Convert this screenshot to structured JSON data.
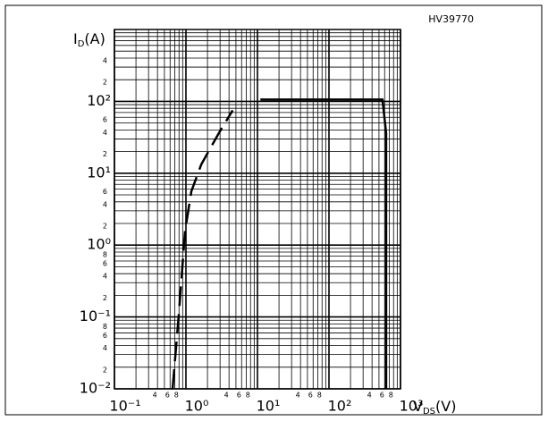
{
  "chart_data": {
    "type": "line",
    "code": "HV39770",
    "ylabel": {
      "symbol": "I",
      "sub": "D",
      "unit": "(A)"
    },
    "xlabel": {
      "symbol": "V",
      "sub": "DS",
      "unit": "(V)"
    },
    "xscale": "log",
    "yscale": "log",
    "grid": true,
    "xlim": [
      0.1,
      1000
    ],
    "ylim": [
      0.01,
      1000
    ],
    "xticks": [
      {
        "value": 0.1,
        "label": "10⁻¹"
      },
      {
        "value": 1,
        "label": "10⁰"
      },
      {
        "value": 10,
        "label": "10¹"
      },
      {
        "value": 100,
        "label": "10²"
      },
      {
        "value": 1000,
        "label": "10³"
      }
    ],
    "xminor_labels": [
      {
        "value": 0.4,
        "label": "4"
      },
      {
        "value": 0.6,
        "label": "6"
      },
      {
        "value": 0.8,
        "label": "8"
      },
      {
        "value": 4,
        "label": "4"
      },
      {
        "value": 6,
        "label": "6"
      },
      {
        "value": 8,
        "label": "8"
      },
      {
        "value": 40,
        "label": "4"
      },
      {
        "value": 60,
        "label": "6"
      },
      {
        "value": 80,
        "label": "8"
      },
      {
        "value": 400,
        "label": "4"
      },
      {
        "value": 600,
        "label": "6"
      },
      {
        "value": 800,
        "label": "8"
      }
    ],
    "yticks": [
      {
        "value": 0.01,
        "label": "10⁻²"
      },
      {
        "value": 0.1,
        "label": "10⁻¹"
      },
      {
        "value": 1,
        "label": "10⁰"
      },
      {
        "value": 10,
        "label": "10¹"
      },
      {
        "value": 100,
        "label": "10²"
      }
    ],
    "yminor_labels": [
      {
        "value": 0.02,
        "label": "2"
      },
      {
        "value": 0.04,
        "label": "4"
      },
      {
        "value": 0.06,
        "label": "6"
      },
      {
        "value": 0.08,
        "label": "8"
      },
      {
        "value": 0.2,
        "label": "2"
      },
      {
        "value": 0.4,
        "label": "4"
      },
      {
        "value": 0.6,
        "label": "6"
      },
      {
        "value": 0.8,
        "label": "8"
      },
      {
        "value": 2,
        "label": "2"
      },
      {
        "value": 4,
        "label": "4"
      },
      {
        "value": 6,
        "label": "6"
      },
      {
        "value": 20,
        "label": "2"
      },
      {
        "value": 40,
        "label": "4"
      },
      {
        "value": 60,
        "label": "6"
      },
      {
        "value": 200,
        "label": "2"
      },
      {
        "value": 400,
        "label": "4"
      }
    ],
    "series": [
      {
        "style": "dashed",
        "color": "#000000",
        "x": [
          0.65,
          0.8,
          0.97,
          1.19,
          1.64,
          2.9,
          4.5
        ],
        "values": [
          0.01,
          0.116,
          1.55,
          5.6,
          13.3,
          36.5,
          75
        ]
      },
      {
        "style": "solid",
        "color": "#000000",
        "x": [
          11,
          560,
          630,
          630
        ],
        "values": [
          106,
          106,
          36,
          0.01
        ]
      }
    ]
  }
}
